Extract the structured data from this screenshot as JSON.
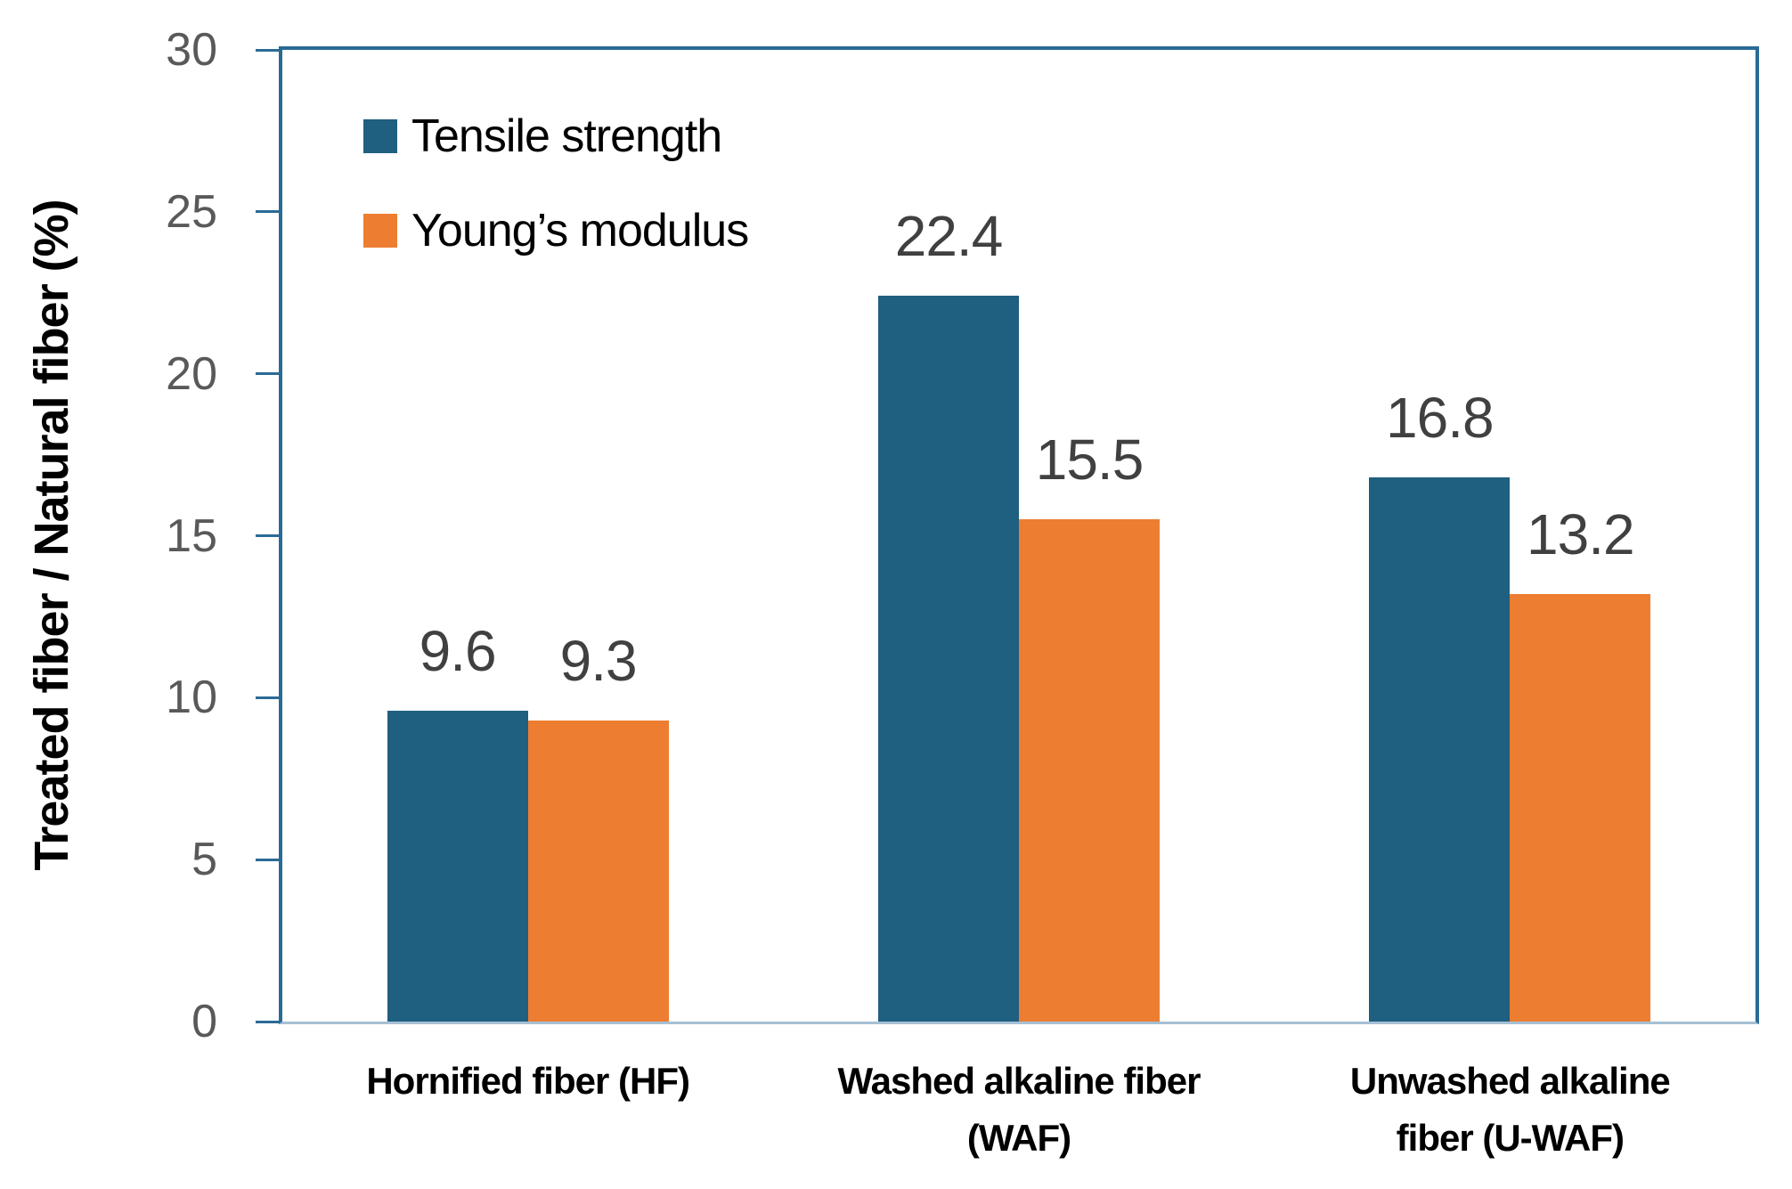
{
  "chart_data": {
    "type": "bar",
    "title": "",
    "xlabel": "",
    "ylabel": "Treated fiber / Natural fiber (%)",
    "ylim": [
      0,
      30
    ],
    "yticks": [
      0,
      5,
      10,
      15,
      20,
      25,
      30
    ],
    "grid": false,
    "legend_position": "top-left-inside",
    "categories": [
      "Hornified fiber (HF)",
      "Washed alkaline fiber (WAF)",
      "Unwashed alkaline fiber (U-WAF)"
    ],
    "category_lines": [
      [
        "Hornified fiber (HF)"
      ],
      [
        "Washed alkaline fiber",
        "(WAF)"
      ],
      [
        "Unwashed alkaline",
        "fiber (U-WAF)"
      ]
    ],
    "series": [
      {
        "name": "Tensile strength",
        "color": "#1F5F80",
        "values": [
          9.6,
          22.4,
          16.8
        ]
      },
      {
        "name": "Young’s modulus",
        "color": "#ED7D31",
        "values": [
          9.3,
          15.5,
          13.2
        ]
      }
    ],
    "data_labels": true
  },
  "colors": {
    "axis_box": "#2A6B96",
    "baseline": "#A6C0D6",
    "tick_label": "#595959",
    "data_label": "#404040",
    "category_label": "#000000",
    "tensile_blue": "#1F5F80",
    "youngs_orange": "#ED7D31"
  }
}
